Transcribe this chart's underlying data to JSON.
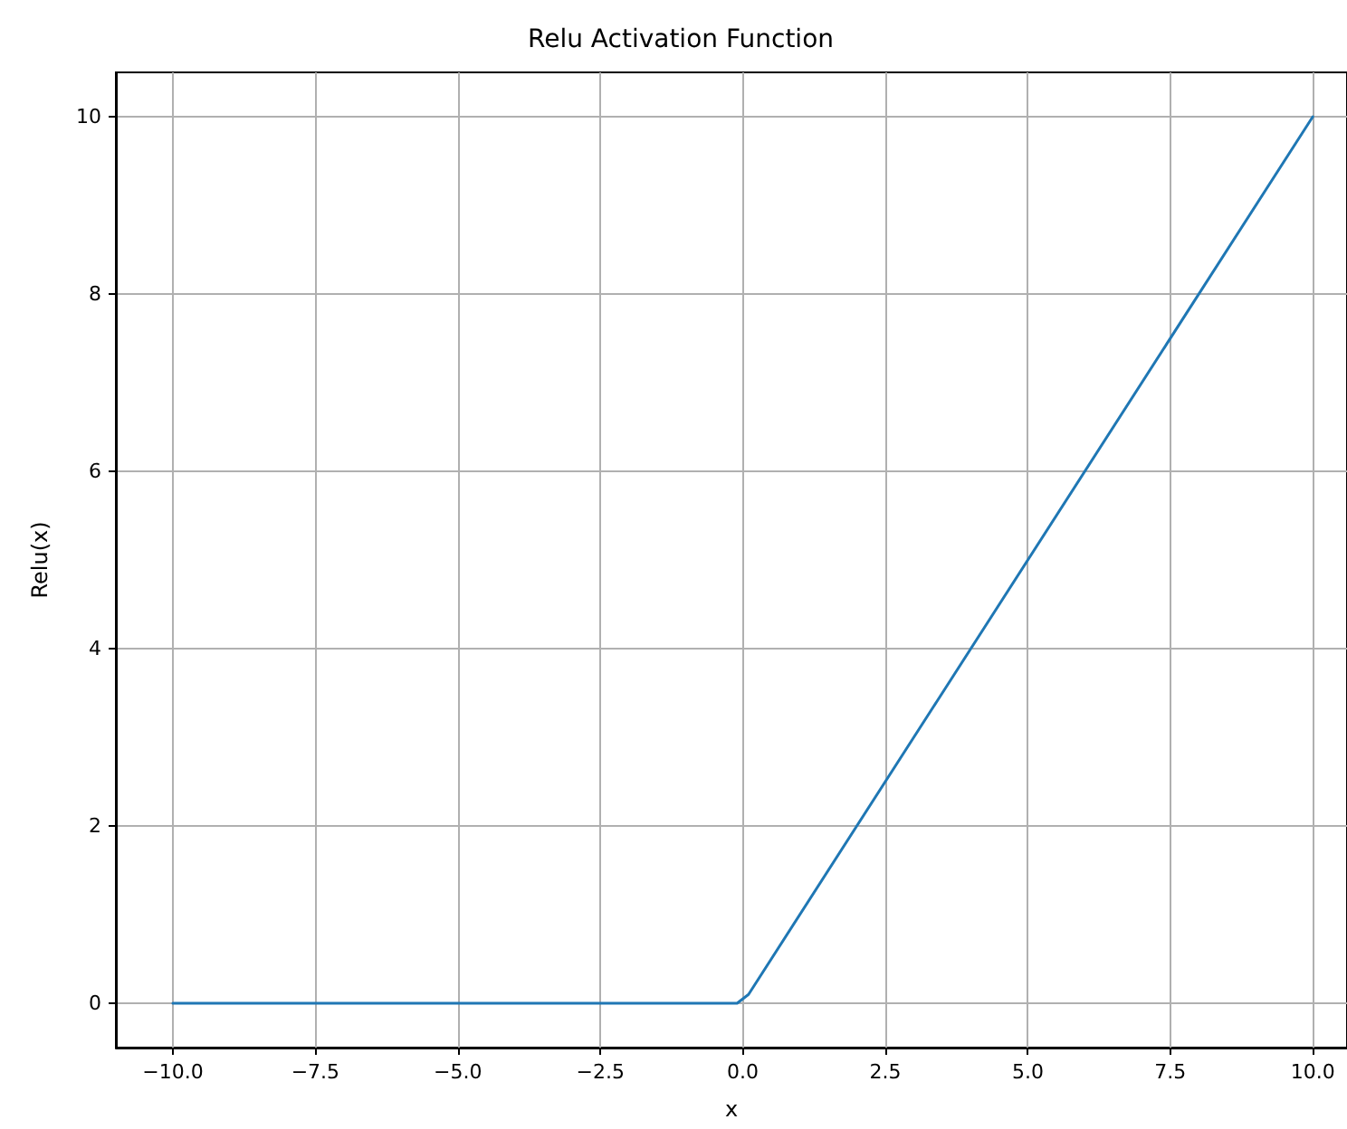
{
  "chart_data": {
    "type": "line",
    "title": "Relu Activation Function",
    "xlabel": "x",
    "ylabel": "Relu(x)",
    "x": [
      -10,
      -0.1,
      0.1,
      10
    ],
    "series": [
      {
        "color": "#1f77b4",
        "values": [
          0,
          0,
          0.1,
          10
        ]
      }
    ],
    "xlim": [
      -11,
      10.6
    ],
    "ylim": [
      -0.5,
      10.5
    ],
    "xticks": [
      {
        "value": -10,
        "label": "−10.0"
      },
      {
        "value": -7.5,
        "label": "−7.5"
      },
      {
        "value": -5,
        "label": "−5.0"
      },
      {
        "value": -2.5,
        "label": "−2.5"
      },
      {
        "value": 0,
        "label": "0.0"
      },
      {
        "value": 2.5,
        "label": "2.5"
      },
      {
        "value": 5,
        "label": "5.0"
      },
      {
        "value": 7.5,
        "label": "7.5"
      },
      {
        "value": 10,
        "label": "10.0"
      }
    ],
    "yticks": [
      0,
      2,
      4,
      6,
      8,
      10
    ],
    "grid": true,
    "marker": "none",
    "line_style": "solid"
  }
}
